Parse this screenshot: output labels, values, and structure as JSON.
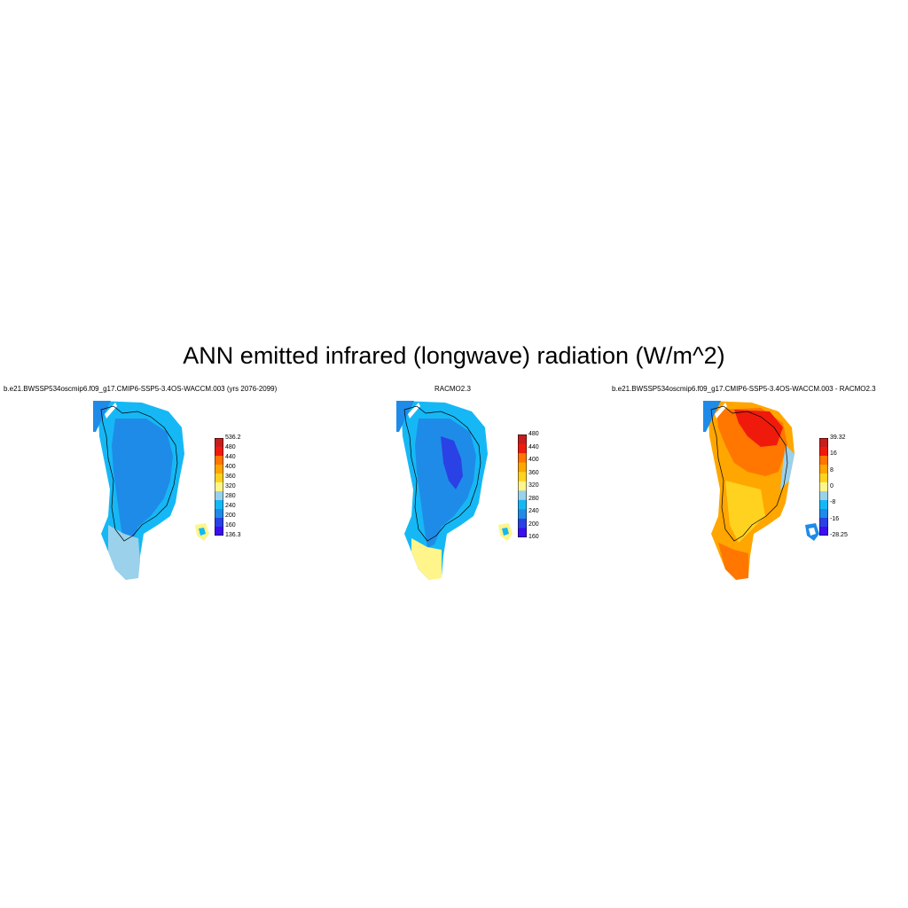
{
  "figure": {
    "title": "ANN emitted infrared (longwave) radiation (W/m^2)"
  },
  "panels": [
    {
      "title": "b.e21.BWSSP534oscmip6.f09_g17.CMIP6-SSP5-3.4OS-WACCM.003 (yrs 2076-2099)",
      "colorbar": {
        "colors": [
          "#3b0ff0",
          "#2a41e6",
          "#1f8be8",
          "#15b8f5",
          "#9bd1ea",
          "#fff58a",
          "#ffd21f",
          "#ffa600",
          "#ff7600",
          "#f01a0c",
          "#c81d1d"
        ],
        "labels": [
          "536.2",
          "480",
          "440",
          "400",
          "360",
          "320",
          "280",
          "240",
          "200",
          "160",
          "136.3"
        ]
      }
    },
    {
      "title": "RACMO2.3",
      "colorbar": {
        "colors": [
          "#3b0ff0",
          "#2a41e6",
          "#1f8be8",
          "#15b8f5",
          "#9bd1ea",
          "#fff58a",
          "#ffd21f",
          "#ffa600",
          "#ff7600",
          "#f01a0c",
          "#c81d1d"
        ],
        "labels": [
          "480",
          "440",
          "400",
          "360",
          "320",
          "280",
          "240",
          "200",
          "160"
        ]
      }
    },
    {
      "title": "b.e21.BWSSP534oscmip6.f09_g17.CMIP6-SSP5-3.4OS-WACCM.003 - RACMO2.3",
      "colorbar": {
        "colors": [
          "#3b0ff0",
          "#2a41e6",
          "#1f8be8",
          "#15b8f5",
          "#9bd1ea",
          "#fff58a",
          "#ffd21f",
          "#ffa600",
          "#ff7600",
          "#f01a0c",
          "#c81d1d"
        ],
        "labels": [
          "39.32",
          "16",
          "8",
          "0",
          "-8",
          "-16",
          "-28.25"
        ]
      }
    }
  ]
}
